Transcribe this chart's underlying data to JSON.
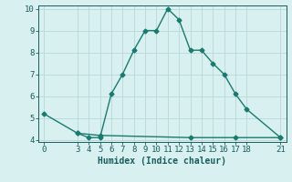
{
  "x_ticks": [
    0,
    3,
    4,
    5,
    6,
    7,
    8,
    9,
    10,
    11,
    12,
    13,
    14,
    15,
    16,
    17,
    18,
    21
  ],
  "line1_x": [
    0,
    3,
    4,
    5,
    6,
    7,
    8,
    9,
    10,
    11,
    12,
    13,
    14,
    15,
    16,
    17,
    18,
    21
  ],
  "line1_y": [
    5.2,
    4.3,
    4.1,
    4.1,
    6.1,
    7.0,
    8.1,
    9.0,
    9.0,
    10.0,
    9.5,
    8.1,
    8.1,
    7.5,
    7.0,
    6.1,
    5.4,
    4.1
  ],
  "line2_x": [
    3,
    5,
    13,
    17,
    21
  ],
  "line2_y": [
    4.3,
    4.2,
    4.1,
    4.1,
    4.1
  ],
  "line_color": "#1a7a6e",
  "bg_color": "#d8f0f0",
  "grid_color": "#b8d8d8",
  "xlabel": "Humidex (Indice chaleur)",
  "ylim": [
    4,
    10
  ],
  "yticks": [
    4,
    5,
    6,
    7,
    8,
    9,
    10
  ],
  "xlim": [
    -0.5,
    21.5
  ],
  "marker": "D",
  "marker_size": 2.5,
  "line_width": 1.0,
  "font_color": "#1a5c5c",
  "xlabel_fontsize": 7.0,
  "tick_fontsize": 6.5
}
